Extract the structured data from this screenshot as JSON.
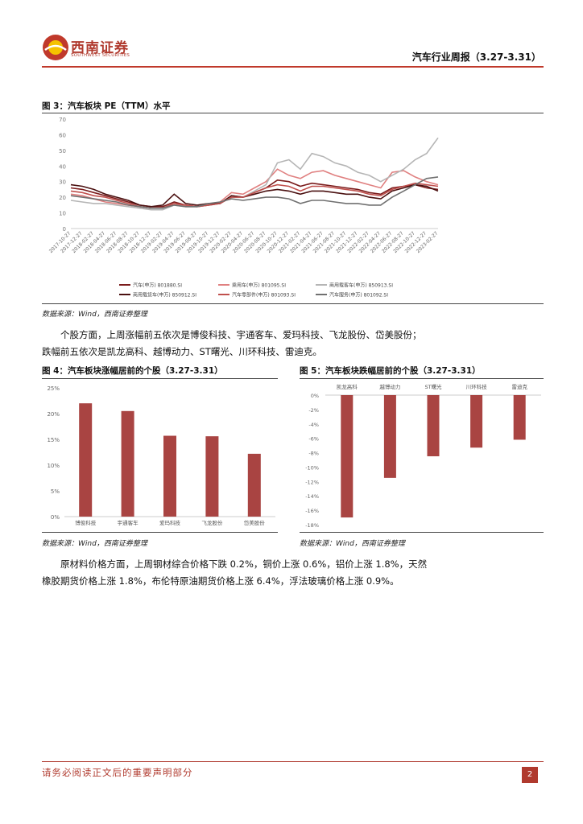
{
  "header": {
    "logo_name": "西南证券",
    "logo_sub": "SOUTHWEST SECURITIES",
    "report_title": "汽车行业周报（3.27-3.31）"
  },
  "figure3": {
    "title": "图 3：汽车板块 PE（TTM）水平",
    "source": "数据来源：Wind，西南证券整理"
  },
  "paragraph1": {
    "line1": "个股方面，上周涨幅前五依次是博俊科技、宇通客车、爱玛科技、飞龙股份、岱美股份；",
    "line2": "跌幅前五依次是凯龙高科、越博动力、ST曙光、川环科技、雷迪克。"
  },
  "figure4": {
    "title": "图 4：汽车板块涨幅居前的个股（3.27-3.31）",
    "source": "数据来源：Wind，西南证券整理"
  },
  "figure5": {
    "title": "图 5：汽车板块跌幅居前的个股（3.27-3.31）",
    "source": "数据来源：Wind，西南证券整理"
  },
  "paragraph2": {
    "line1": "原材料价格方面，上周钢材综合价格下跌 0.2%，铜价上涨 0.6%，铝价上涨 1.8%，天然",
    "line2": "橡胶期货价格上涨 1.8%，布伦特原油期货价格上涨 6.4%，浮法玻璃价格上涨 0.9%。"
  },
  "footer": {
    "disclaimer": "请务必阅读正文后的重要声明部分",
    "page_number": "2"
  },
  "chart_data": [
    {
      "type": "line",
      "ylim": [
        0,
        70
      ],
      "yticks": [
        "0",
        "10",
        "20",
        "30",
        "40",
        "50",
        "60",
        "70"
      ],
      "x": [
        "2017-10-27",
        "2017-12-27",
        "2018-02-27",
        "2018-04-27",
        "2018-06-27",
        "2018-08-27",
        "2018-10-27",
        "2018-12-27",
        "2019-02-27",
        "2019-04-27",
        "2019-06-27",
        "2019-08-27",
        "2019-10-27",
        "2019-12-27",
        "2020-02-27",
        "2020-04-27",
        "2020-06-27",
        "2020-08-27",
        "2020-10-27",
        "2020-12-27",
        "2021-02-27",
        "2021-04-27",
        "2021-06-27",
        "2021-08-27",
        "2021-10-27",
        "2021-12-27",
        "2022-02-27",
        "2022-04-27",
        "2022-06-27",
        "2022-08-27",
        "2022-10-27",
        "2022-12-27",
        "2023-02-27"
      ],
      "legend_position": "bottom",
      "grid": false,
      "series": [
        {
          "name": "汽车(申万) 801880.SI",
          "color": "#7b1c1c",
          "values": [
            26,
            25,
            23,
            21,
            19,
            17,
            15,
            14,
            14,
            17,
            15,
            14,
            15,
            16,
            21,
            20,
            23,
            26,
            31,
            30,
            27,
            29,
            28,
            27,
            26,
            25,
            23,
            22,
            26,
            27,
            28,
            26,
            25
          ]
        },
        {
          "name": "乘用车(申万) 801095.SI",
          "color": "#e08080",
          "values": [
            22,
            21,
            19,
            17,
            16,
            15,
            14,
            13,
            13,
            16,
            14,
            14,
            15,
            17,
            23,
            22,
            26,
            30,
            38,
            34,
            32,
            36,
            37,
            34,
            32,
            30,
            28,
            26,
            36,
            37,
            33,
            30,
            28
          ]
        },
        {
          "name": "商用载客车(申万) 850913.SI",
          "color": "#b5b5b5",
          "values": [
            18,
            17,
            16,
            16,
            15,
            14,
            13,
            12,
            12,
            15,
            14,
            14,
            15,
            16,
            20,
            20,
            24,
            28,
            42,
            44,
            38,
            48,
            46,
            42,
            40,
            36,
            34,
            30,
            34,
            38,
            44,
            48,
            58
          ]
        },
        {
          "name": "商用载货车(申万) 850912.SI",
          "color": "#4a1010",
          "values": [
            28,
            27,
            25,
            22,
            20,
            18,
            15,
            14,
            15,
            22,
            16,
            15,
            16,
            16,
            21,
            20,
            22,
            24,
            25,
            24,
            22,
            24,
            24,
            23,
            22,
            22,
            20,
            19,
            24,
            26,
            28,
            27,
            24
          ]
        },
        {
          "name": "汽车零部件(申万) 801093.SI",
          "color": "#c0504d",
          "values": [
            24,
            23,
            21,
            20,
            18,
            16,
            14,
            13,
            13,
            16,
            15,
            14,
            15,
            16,
            20,
            20,
            23,
            26,
            28,
            27,
            24,
            27,
            27,
            26,
            25,
            24,
            22,
            21,
            25,
            27,
            29,
            28,
            27
          ]
        },
        {
          "name": "汽车服务(申万) 801092.SI",
          "color": "#707070",
          "values": [
            21,
            20,
            19,
            18,
            17,
            15,
            14,
            13,
            13,
            15,
            14,
            14,
            16,
            17,
            19,
            18,
            19,
            20,
            20,
            19,
            16,
            18,
            18,
            17,
            16,
            16,
            15,
            15,
            20,
            24,
            28,
            32,
            33
          ]
        }
      ]
    },
    {
      "type": "bar",
      "categories": [
        "博俊科技",
        "宇通客车",
        "爱玛科技",
        "飞龙股份",
        "岱美股份"
      ],
      "values": [
        22.0,
        20.5,
        15.7,
        15.6,
        12.2
      ],
      "ylim": [
        0,
        25
      ],
      "yticks": [
        "0%",
        "5%",
        "10%",
        "15%",
        "20%",
        "25%"
      ],
      "color": "#a94442"
    },
    {
      "type": "bar",
      "categories": [
        "凯龙高科",
        "越博动力",
        "ST曙光",
        "川环科技",
        "雷迪克"
      ],
      "values": [
        -17.0,
        -11.5,
        -8.5,
        -7.3,
        -6.2
      ],
      "ylim": [
        -18,
        0
      ],
      "yticks": [
        "0%",
        "-2%",
        "-4%",
        "-6%",
        "-8%",
        "-10%",
        "-12%",
        "-14%",
        "-16%",
        "-18%"
      ],
      "color": "#a94442"
    }
  ]
}
